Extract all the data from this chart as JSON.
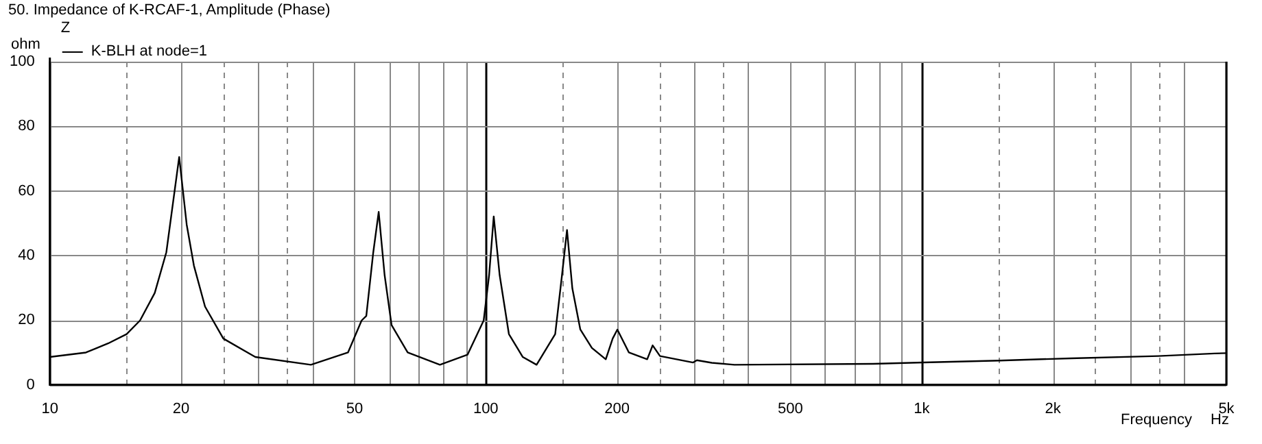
{
  "chart_data": {
    "type": "line",
    "title": "50. Impedance of K-RCAF-1, Amplitude (Phase)",
    "ylabel": "ohm",
    "xlabel": "Frequency",
    "legend_title": "Z",
    "annotations": [
      "Hz"
    ],
    "x": [
      10,
      12.1,
      13.6,
      15,
      16.1,
      17.4,
      18.5,
      19.8,
      20.6,
      21.4,
      22.7,
      25,
      29.6,
      39.7,
      48.3,
      51.9,
      53.2,
      55.2,
      56.8,
      58.6,
      60.8,
      66.2,
      78.5,
      90.8,
      98.9,
      101.8,
      104.3,
      107.6,
      113,
      121.6,
      130.8,
      144.3,
      149.6,
      153.6,
      158,
      164.8,
      175.2,
      188.5,
      195.5,
      200.4,
      213,
      234.6,
      241.5,
      251,
      299,
      305,
      330,
      372,
      773,
      1009,
      1508,
      2198,
      3491,
      4699,
      5000
    ],
    "series": [
      {
        "name": "K-BLH at node=1",
        "color": "#000000",
        "values": [
          8.6,
          10,
          12.8,
          15.7,
          19.9,
          28.4,
          41,
          70.5,
          49.6,
          36.9,
          24.2,
          14.3,
          8.6,
          6.2,
          10,
          19.9,
          21.3,
          41,
          53.5,
          34,
          18.5,
          10,
          6.2,
          9.3,
          19.9,
          34,
          52.1,
          34,
          15.7,
          8.6,
          6.2,
          15.7,
          34,
          47.9,
          29.8,
          17.1,
          11.4,
          7.9,
          14.3,
          17.1,
          10,
          7.9,
          12.2,
          8.9,
          6.9,
          7.6,
          6.8,
          6.2,
          6.5,
          6.9,
          7.5,
          8.2,
          8.9,
          9.7,
          9.8
        ]
      }
    ],
    "log": "x",
    "xlim": [
      10,
      5000
    ],
    "ylim": [
      0,
      100
    ],
    "xticks": [
      10,
      {
        "value": 15,
        "label": null
      },
      20,
      {
        "value": 25,
        "label": null
      },
      {
        "value": 30,
        "label": null
      },
      {
        "value": 35,
        "label": null
      },
      {
        "value": 40,
        "label": null
      },
      50,
      {
        "value": 60,
        "label": null
      },
      {
        "value": 70,
        "label": null
      },
      {
        "value": 80,
        "label": null
      },
      {
        "value": 90,
        "label": null
      },
      100,
      {
        "value": 150,
        "label": null
      },
      200,
      {
        "value": 250,
        "label": null
      },
      {
        "value": 300,
        "label": null
      },
      {
        "value": 350,
        "label": null
      },
      {
        "value": 400,
        "label": null
      },
      500,
      {
        "value": 600,
        "label": null
      },
      {
        "value": 700,
        "label": null
      },
      {
        "value": 800,
        "label": null
      },
      {
        "value": 900,
        "label": null
      },
      {
        "value": 1000,
        "label": "1k"
      },
      {
        "value": 1500,
        "label": null
      },
      {
        "value": 2000,
        "label": "2k"
      },
      {
        "value": 2500,
        "label": null
      },
      {
        "value": 3000,
        "label": null
      },
      {
        "value": 3500,
        "label": null
      },
      {
        "value": 4000,
        "label": null
      },
      {
        "value": 5000,
        "label": "5k"
      }
    ],
    "yticks": [
      0,
      20,
      40,
      60,
      80,
      100
    ],
    "grid": true,
    "legend": "top left",
    "marker": "none",
    "line_style": "solid"
  }
}
